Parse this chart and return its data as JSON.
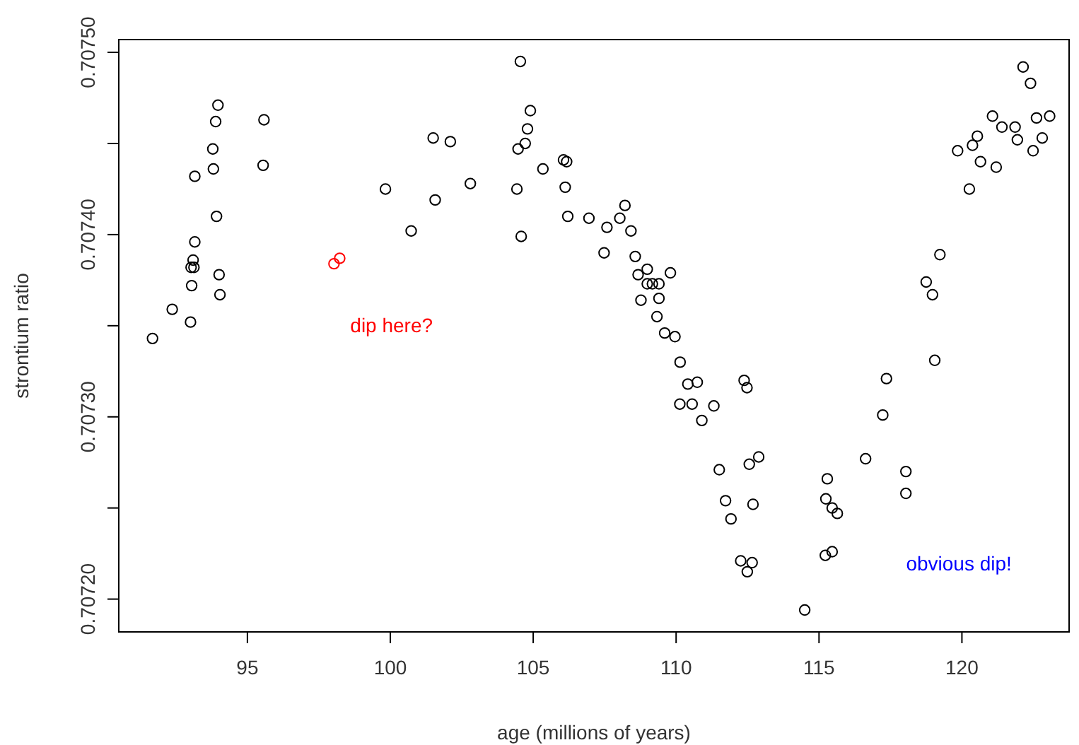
{
  "chart_data": {
    "type": "scatter",
    "xlabel": "age (millions of years)",
    "ylabel": "strontium ratio",
    "xlim": [
      90.5,
      123.75
    ],
    "ylim": [
      0.707182,
      0.707507
    ],
    "xticks": [
      95,
      100,
      105,
      110,
      115,
      120
    ],
    "yticks": [
      {
        "value": 0.7072,
        "label": "0.70720"
      },
      {
        "value": 0.70725,
        "label": null
      },
      {
        "value": 0.7073,
        "label": "0.70730"
      },
      {
        "value": 0.70735,
        "label": null
      },
      {
        "value": 0.7074,
        "label": "0.70740"
      },
      {
        "value": 0.70745,
        "label": null
      },
      {
        "value": 0.7075,
        "label": "0.70750"
      }
    ],
    "grid": false,
    "marker": "circle",
    "series": [
      {
        "color": "#000000",
        "x": [
          91.68,
          92.37,
          93.01,
          93.05,
          93.1,
          93.13,
          93.03,
          93.16,
          93.16,
          93.81,
          93.79,
          93.89,
          93.97,
          93.92,
          94.01,
          94.04,
          95.58,
          95.55,
          99.83,
          100.73,
          101.5,
          101.57,
          102.1,
          102.8,
          104.55,
          104.9,
          104.8,
          104.72,
          104.47,
          105.34,
          104.43,
          104.58,
          106.06,
          106.17,
          106.12,
          106.21,
          106.95,
          107.58,
          108.03,
          108.21,
          108.42,
          107.48,
          108.57,
          108.67,
          108.99,
          108.99,
          109.17,
          109.4,
          109.8,
          108.77,
          109.4,
          109.33,
          109.6,
          109.96,
          110.14,
          110.41,
          110.74,
          110.13,
          110.56,
          111.32,
          110.9,
          112.38,
          112.48,
          111.51,
          112.56,
          112.89,
          111.73,
          112.69,
          111.92,
          112.26,
          112.66,
          112.49,
          114.5,
          115.29,
          115.24,
          115.46,
          115.64,
          115.22,
          115.46,
          116.63,
          117.23,
          117.36,
          118.04,
          118.04,
          119.05,
          119.23,
          118.75,
          118.97,
          120.26,
          119.85,
          120.37,
          120.54,
          120.65,
          121.2,
          121.07,
          121.4,
          121.86,
          121.94,
          122.14,
          122.4,
          122.61,
          123.07,
          122.81,
          122.49
        ],
        "values": [
          0.707343,
          0.707359,
          0.707352,
          0.707372,
          0.707386,
          0.707382,
          0.707382,
          0.707396,
          0.707432,
          0.707436,
          0.707447,
          0.707462,
          0.707471,
          0.70741,
          0.707378,
          0.707367,
          0.707463,
          0.707438,
          0.707425,
          0.707402,
          0.707453,
          0.707419,
          0.707451,
          0.707428,
          0.707495,
          0.707468,
          0.707458,
          0.70745,
          0.707447,
          0.707436,
          0.707425,
          0.707399,
          0.707441,
          0.70744,
          0.707426,
          0.70741,
          0.707409,
          0.707404,
          0.707409,
          0.707416,
          0.707402,
          0.70739,
          0.707388,
          0.707378,
          0.707381,
          0.707373,
          0.707373,
          0.707373,
          0.707379,
          0.707364,
          0.707365,
          0.707355,
          0.707346,
          0.707344,
          0.70733,
          0.707318,
          0.707319,
          0.707307,
          0.707307,
          0.707306,
          0.707298,
          0.70732,
          0.707316,
          0.707271,
          0.707274,
          0.707278,
          0.707254,
          0.707252,
          0.707244,
          0.707221,
          0.70722,
          0.707215,
          0.707194,
          0.707266,
          0.707255,
          0.70725,
          0.707247,
          0.707224,
          0.707226,
          0.707277,
          0.707301,
          0.707321,
          0.70727,
          0.707258,
          0.707331,
          0.707389,
          0.707374,
          0.707367,
          0.707425,
          0.707446,
          0.707449,
          0.707454,
          0.70744,
          0.707437,
          0.707465,
          0.707459,
          0.707459,
          0.707452,
          0.707492,
          0.707483,
          0.707464,
          0.707465,
          0.707453,
          0.707446
        ]
      },
      {
        "color": "#ff0000",
        "x": [
          98.03,
          98.23
        ],
        "values": [
          0.707384,
          0.707387
        ]
      }
    ],
    "annotations": [
      "dip here?",
      "obvious dip!"
    ]
  }
}
